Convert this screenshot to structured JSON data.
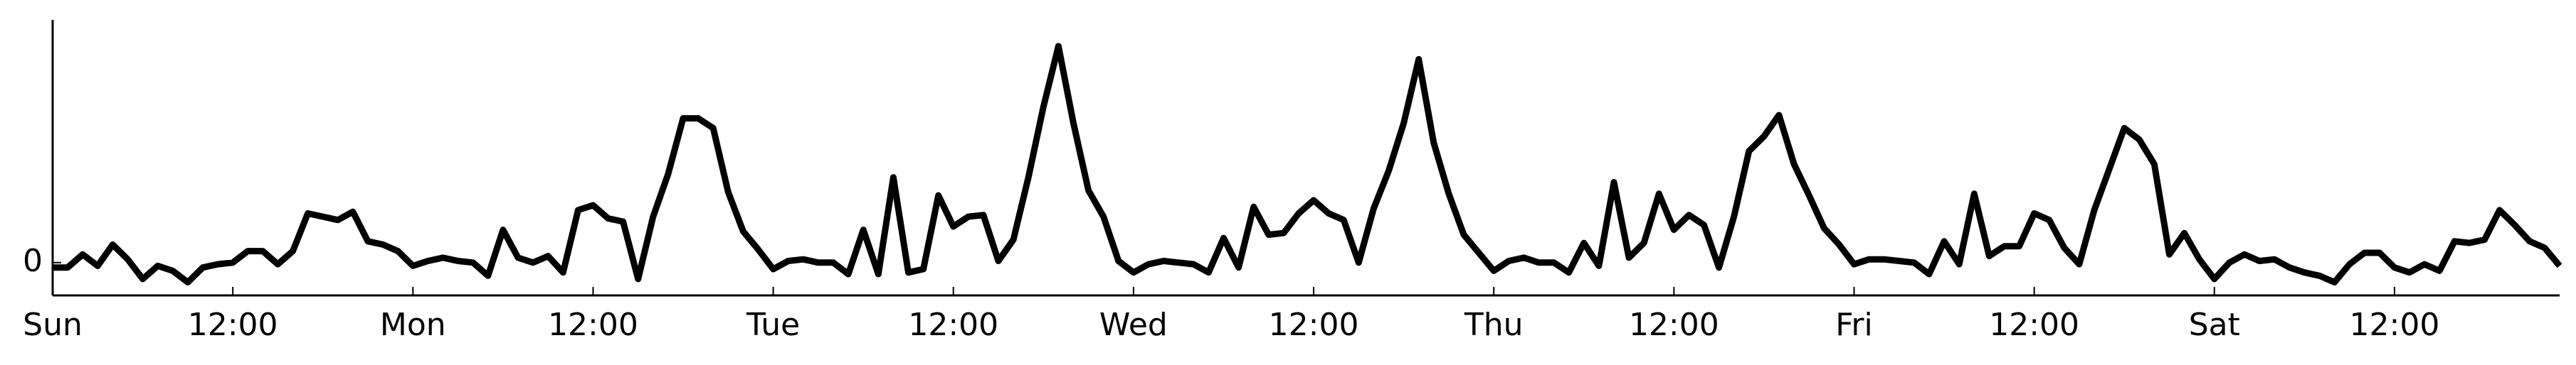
{
  "chart_data": {
    "type": "line",
    "x": [
      0,
      1,
      2,
      3,
      4,
      5,
      6,
      7,
      8,
      9,
      10,
      11,
      12,
      13,
      14,
      15,
      16,
      17,
      18,
      19,
      20,
      21,
      22,
      23,
      24,
      25,
      26,
      27,
      28,
      29,
      30,
      31,
      32,
      33,
      34,
      35,
      36,
      37,
      38,
      39,
      40,
      41,
      42,
      43,
      44,
      45,
      46,
      47,
      48,
      49,
      50,
      51,
      52,
      53,
      54,
      55,
      56,
      57,
      58,
      59,
      60,
      61,
      62,
      63,
      64,
      65,
      66,
      67,
      68,
      69,
      70,
      71,
      72,
      73,
      74,
      75,
      76,
      77,
      78,
      79,
      80,
      81,
      82,
      83,
      84,
      85,
      86,
      87,
      88,
      89,
      90,
      91,
      92,
      93,
      94,
      95,
      96,
      97,
      98,
      99,
      100,
      101,
      102,
      103,
      104,
      105,
      106,
      107,
      108,
      109,
      110,
      111,
      112,
      113,
      114,
      115,
      116,
      117,
      118,
      119,
      120,
      121,
      122,
      123,
      124,
      125,
      126,
      127,
      128,
      129,
      130,
      131,
      132,
      133,
      134,
      135,
      136,
      137,
      138,
      139,
      140,
      141,
      142,
      143,
      144,
      145,
      146,
      147,
      148,
      149,
      150,
      151,
      152,
      153,
      154,
      155,
      156,
      157,
      158,
      159,
      160,
      161,
      162,
      163,
      164,
      165,
      166,
      167
    ],
    "series": [
      {
        "color": "#000000",
        "values": [
          -0.3,
          -0.3,
          0.5,
          -0.2,
          1.1,
          0.2,
          -1.0,
          -0.2,
          -0.5,
          -1.2,
          -0.3,
          -0.1,
          0,
          0.7,
          0.7,
          -0.1,
          0.7,
          3.0,
          2.8,
          2.6,
          3.1,
          1.3,
          1.1,
          0.7,
          -0.2,
          0.1,
          0.3,
          0.1,
          0,
          -0.8,
          2.0,
          0.3,
          0,
          0.4,
          -0.6,
          3.2,
          3.5,
          2.7,
          2.5,
          -1.0,
          2.8,
          5.4,
          8.8,
          8.8,
          8.2,
          4.3,
          1.9,
          0.8,
          -0.4,
          0.1,
          0.2,
          0,
          0,
          -0.7,
          2.0,
          -0.7,
          5.2,
          -0.6,
          -0.4,
          4.1,
          2.2,
          2.8,
          2.9,
          0.1,
          1.4,
          5.2,
          9.5,
          13.2,
          8.5,
          4.4,
          2.8,
          0.1,
          -0.6,
          -0.1,
          0.1,
          0,
          -0.1,
          -0.6,
          1.5,
          -0.3,
          3.4,
          1.7,
          1.8,
          3.0,
          3.8,
          3.0,
          2.6,
          0,
          3.3,
          5.6,
          8.5,
          12.4,
          7.3,
          4.2,
          1.7,
          0.6,
          -0.5,
          0.1,
          0.3,
          0,
          0,
          -0.6,
          1.2,
          -0.2,
          4.9,
          0.3,
          1.2,
          4.2,
          2.0,
          2.9,
          2.3,
          -0.3,
          2.8,
          6.8,
          7.7,
          9.0,
          6.0,
          4.1,
          2.1,
          1.1,
          -0.1,
          0.2,
          0.2,
          0.1,
          0,
          -0.7,
          1.3,
          -0.1,
          4.2,
          0.4,
          1.0,
          1.0,
          3.0,
          2.6,
          0.9,
          -0.1,
          3.2,
          5.7,
          8.2,
          7.5,
          6.0,
          0.5,
          1.8,
          0.2,
          -1.0,
          0,
          0.5,
          0.1,
          0.2,
          -0.3,
          -0.6,
          -0.8,
          -1.2,
          -0.1,
          0.6,
          0.6,
          -0.3,
          -0.6,
          -0.1,
          -0.5,
          1.3,
          1.2,
          1.4,
          3.2,
          2.3,
          1.3,
          0.9,
          -0.2
        ]
      }
    ],
    "xlim": [
      0,
      167
    ],
    "xticks": [
      {
        "value": 0,
        "label": "Sun"
      },
      {
        "value": 12,
        "label": "12:00"
      },
      {
        "value": 24,
        "label": "Mon"
      },
      {
        "value": 36,
        "label": "12:00"
      },
      {
        "value": 48,
        "label": "Tue"
      },
      {
        "value": 60,
        "label": "12:00"
      },
      {
        "value": 72,
        "label": "Wed"
      },
      {
        "value": 84,
        "label": "12:00"
      },
      {
        "value": 96,
        "label": "Thu"
      },
      {
        "value": 108,
        "label": "12:00"
      },
      {
        "value": 120,
        "label": "Fri"
      },
      {
        "value": 132,
        "label": "12:00"
      },
      {
        "value": 144,
        "label": "Sat"
      },
      {
        "value": 156,
        "label": "12:00"
      }
    ],
    "ylim": [
      -2,
      14.8
    ],
    "yticks": [
      0
    ]
  }
}
